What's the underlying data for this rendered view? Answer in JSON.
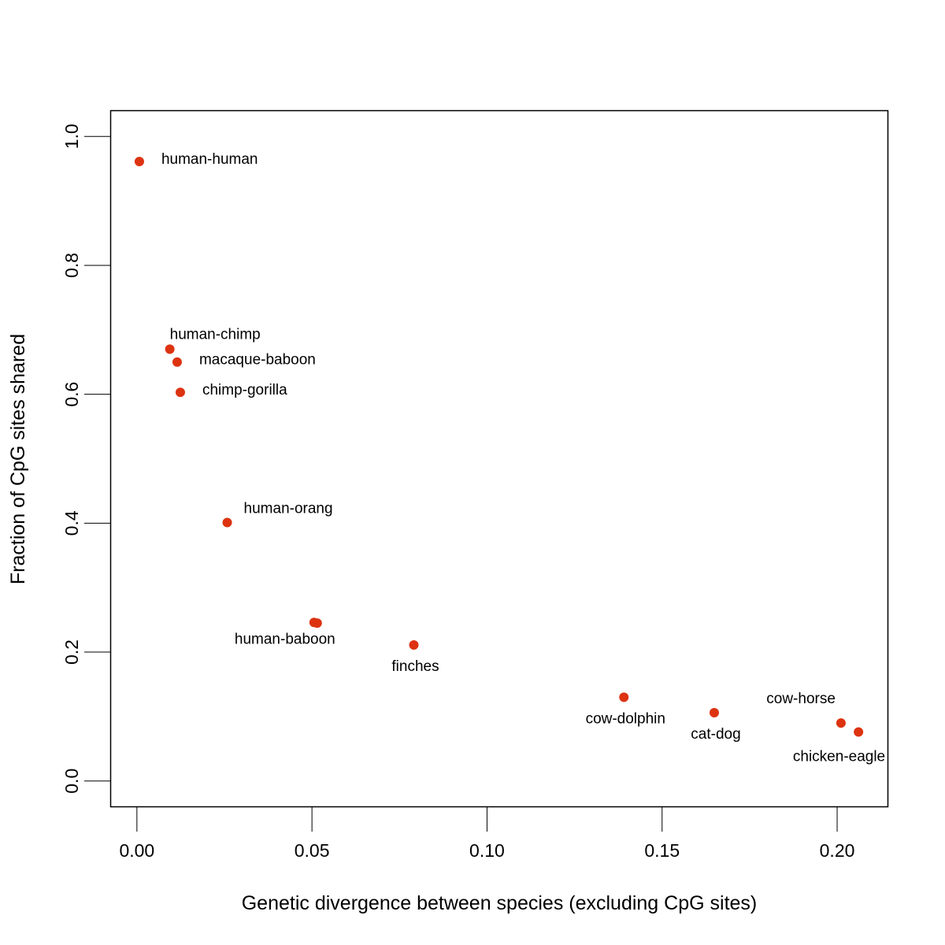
{
  "chart_data": {
    "type": "scatter",
    "title": "",
    "xlabel": "Genetic divergence between species (excluding CpG sites)",
    "ylabel": "Fraction of CpG sites shared",
    "xlim": [
      -0.0075,
      0.2145
    ],
    "ylim": [
      -0.04,
      1.04
    ],
    "x_ticks": [
      0.0,
      0.05,
      0.1,
      0.15,
      0.2
    ],
    "x_tick_labels": [
      "0.00",
      "0.05",
      "0.10",
      "0.15",
      "0.20"
    ],
    "y_ticks": [
      0.0,
      0.2,
      0.4,
      0.6,
      0.8,
      1.0
    ],
    "y_tick_labels": [
      "0.0",
      "0.2",
      "0.4",
      "0.6",
      "0.8",
      "1.0"
    ],
    "grid": false,
    "legend": "none",
    "point_color": "#dd3311",
    "points": [
      {
        "x": 0.0007,
        "y": 0.961,
        "label": "human-human",
        "label_pos": "right"
      },
      {
        "x": 0.0094,
        "y": 0.67,
        "label": "human-chimp",
        "label_pos": "top-right"
      },
      {
        "x": 0.0115,
        "y": 0.65,
        "label": "macaque-baboon",
        "label_pos": "right"
      },
      {
        "x": 0.0124,
        "y": 0.603,
        "label": "chimp-gorilla",
        "label_pos": "right"
      },
      {
        "x": 0.0258,
        "y": 0.401,
        "label": "human-orang",
        "label_pos": "top-right"
      },
      {
        "x": 0.0506,
        "y": 0.246,
        "label": "human-baboon",
        "label_pos": "bottom"
      },
      {
        "x": 0.0515,
        "y": 0.245,
        "label": "",
        "label_pos": "none"
      },
      {
        "x": 0.0791,
        "y": 0.211,
        "label": "finches",
        "label_pos": "bottom"
      },
      {
        "x": 0.1391,
        "y": 0.13,
        "label": "cow-dolphin",
        "label_pos": "bottom"
      },
      {
        "x": 0.1649,
        "y": 0.106,
        "label": "cat-dog",
        "label_pos": "bottom"
      },
      {
        "x": 0.2011,
        "y": 0.09,
        "label": "cow-horse",
        "label_pos": "top-left"
      },
      {
        "x": 0.2061,
        "y": 0.076,
        "label": "chicken-eagle",
        "label_pos": "bottom-left"
      }
    ]
  }
}
